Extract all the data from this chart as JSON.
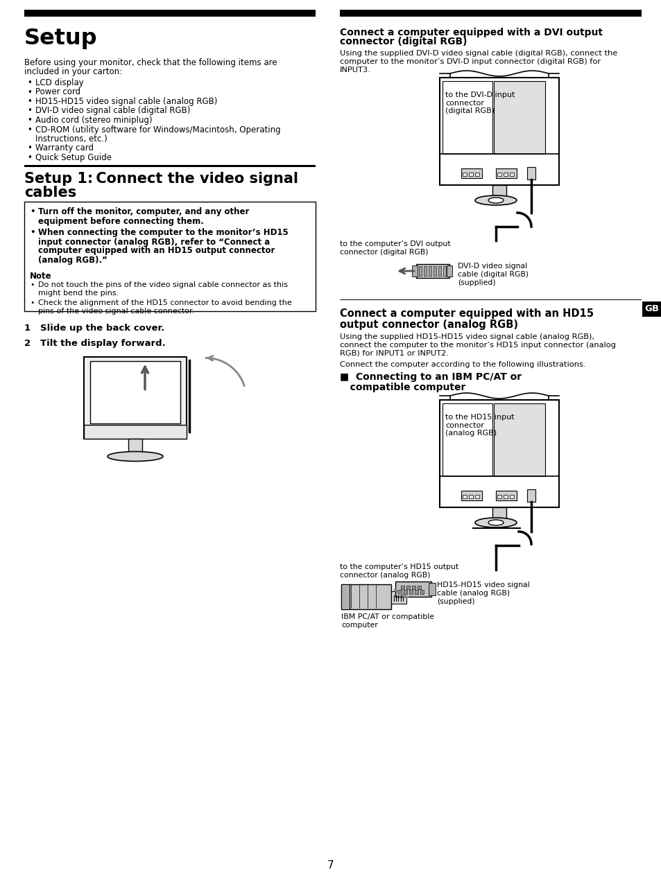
{
  "page_background": "#ffffff",
  "page_number": "7",
  "lang_tag": "GB",
  "title_setup": "Setup",
  "setup_body1": "Before using your monitor, check that the following items are",
  "setup_body2": "included in your carton:",
  "setup_bullets": [
    "LCD display",
    "Power cord",
    "HD15-HD15 video signal cable (analog RGB)",
    "DVI-D video signal cable (digital RGB)",
    "Audio cord (stereo miniplug)",
    "CD-ROM (utility software for Windows/Macintosh, Operating",
    "Instructions, etc.)",
    "Warranty card",
    "Quick Setup Guide"
  ],
  "setup_bullets_indent": [
    6
  ],
  "title_setup1_l1": "Setup 1: Connect the video signal",
  "title_setup1_l2": "cables",
  "warn_b1_l1": "Turn off the monitor, computer, and any other",
  "warn_b1_l2": "equipment before connecting them.",
  "warn_b2_l1": "When connecting the computer to the monitor’s HD15",
  "warn_b2_l2": "input connector (analog RGB), refer to “Connect a",
  "warn_b2_l3": "computer equipped with an HD15 output connector",
  "warn_b2_l4": "(analog RGB).”",
  "note_title": "Note",
  "note_b1_l1": "Do not touch the pins of the video signal cable connector as this",
  "note_b1_l2": "might bend the pins.",
  "note_b2_l1": "Check the alignment of the HD15 connector to avoid bending the",
  "note_b2_l2": "pins of the video signal cable connector.",
  "step1": "1   Slide up the back cover.",
  "step2": "2   Tilt the display forward.",
  "rt1_l1": "Connect a computer equipped with a DVI output",
  "rt1_l2": "connector (digital RGB)",
  "rb1_l1": "Using the supplied DVI-D video signal cable (digital RGB), connect the",
  "rb1_l2": "computer to the monitor’s DVI-D input connector (digital RGB) for",
  "rb1_l3": "INPUT3.",
  "dvi_mon_label": "to the DVI-D input\nconnector\n(digital RGB)",
  "dvi_bot_l1": "to the computer’s DVI output",
  "dvi_bot_l2": "connector (digital RGB)",
  "dvi_right_l1": "DVI-D video signal",
  "dvi_right_l2": "cable (digital RGB)",
  "dvi_right_l3": "(supplied)",
  "rt2_l1": "Connect a computer equipped with an HD15",
  "rt2_l2": "output connector (analog RGB)",
  "rb2_l1": "Using the supplied HD15-HD15 video signal cable (analog RGB),",
  "rb2_l2": "connect the computer to the monitor’s HD15 input connector (analog",
  "rb2_l3": "RGB) for INPUT1 or INPUT2.",
  "rb2b": "Connect the computer according to the following illustrations.",
  "rt3_l1": "■  Connecting to an IBM PC/AT or",
  "rt3_l2": "   compatible computer",
  "hd15_mon_label": "to the HD15 input\nconnector\n(analog RGB)",
  "hd15_bot_l1": "to the computer’s HD15 output",
  "hd15_bot_l2": "connector (analog RGB)",
  "hd15_ibm_l1": "IBM PC/AT or compatible",
  "hd15_ibm_l2": "computer",
  "hd15_right_l1": "HD15-HD15 video signal",
  "hd15_right_l2": "cable (analog RGB)",
  "hd15_right_l3": "(supplied)"
}
